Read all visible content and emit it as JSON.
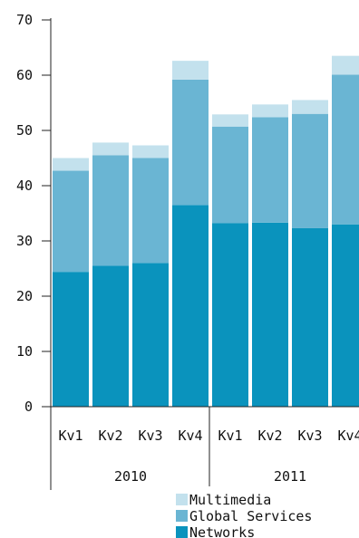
{
  "chart_data": {
    "type": "bar",
    "stacked": true,
    "title": "",
    "xlabel": "",
    "ylabel": "",
    "ylim": [
      0,
      70
    ],
    "yticks": [
      0,
      10,
      20,
      30,
      40,
      50,
      60,
      70
    ],
    "grid": false,
    "legend_position": "bottom-right",
    "categories": [
      "Kv1",
      "Kv2",
      "Kv3",
      "Kv4",
      "Kv1",
      "Kv2",
      "Kv3",
      "Kv4"
    ],
    "groups": [
      {
        "label": "2010",
        "categories": 4
      },
      {
        "label": "2011",
        "categories": 4
      }
    ],
    "series": [
      {
        "name": "Networks",
        "color": "#0a93bd",
        "values": [
          24.4,
          25.5,
          26.0,
          36.5,
          33.2,
          33.3,
          32.3,
          33.0
        ]
      },
      {
        "name": "Global Services",
        "color": "#6ab5d3",
        "values": [
          18.3,
          20.0,
          19.0,
          22.7,
          17.5,
          19.1,
          20.7,
          27.1
        ]
      },
      {
        "name": "Multimedia",
        "color": "#c3e1ed",
        "values": [
          2.3,
          2.3,
          2.3,
          3.4,
          2.2,
          2.3,
          2.5,
          3.4
        ]
      }
    ]
  }
}
